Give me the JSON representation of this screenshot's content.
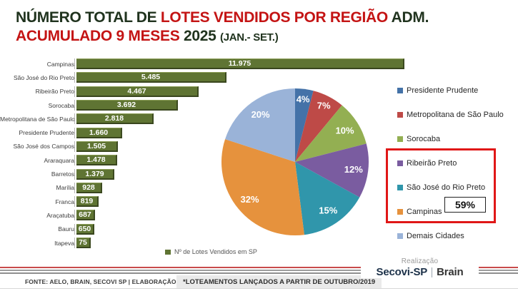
{
  "title": {
    "l1_dark1": "NÚMERO TOTAL DE ",
    "l1_red": "LOTES VENDIDOS POR REGIÃO ",
    "l1_dark2": "ADM.",
    "l2_red": "ACUMULADO 9 MESES ",
    "l2_dark": "2025 ",
    "l2_paren": "(JAN.- SET.)"
  },
  "chart_data": [
    {
      "type": "bar",
      "orientation": "horizontal",
      "title": "Nº de Lotes Vendidos em SP",
      "categories": [
        "Campinas",
        "São José do Rio Preto",
        "Ribeirão Preto",
        "Sorocaba",
        "Metropolitana de São Paulo",
        "Presidente Prudente",
        "São José dos Campos",
        "Araraquara",
        "Barretos",
        "Marília",
        "Franca",
        "Araçatuba",
        "Bauru",
        "Itapeva"
      ],
      "values": [
        11975,
        5485,
        4467,
        3692,
        2818,
        1660,
        1505,
        1478,
        1379,
        928,
        819,
        687,
        650,
        75
      ],
      "value_labels": [
        "11.975",
        "5.485",
        "4.467",
        "3.692",
        "2.818",
        "1.660",
        "1.505",
        "1.478",
        "1.379",
        "928",
        "819",
        "687",
        "650",
        "75"
      ],
      "xlim": [
        0,
        11975
      ],
      "bar_color": "#5F7433",
      "grid": false
    },
    {
      "type": "pie",
      "start_angle": "top",
      "direction": "clockwise",
      "slices": [
        {
          "label": "Presidente Prudente",
          "pct": 4,
          "color": "#4472A8",
          "text": "4%"
        },
        {
          "label": "Metropolitana de São Paulo",
          "pct": 7,
          "color": "#BE4A47",
          "text": "7%"
        },
        {
          "label": "Sorocaba",
          "pct": 10,
          "color": "#93AF52",
          "text": "10%"
        },
        {
          "label": "Ribeirão Preto",
          "pct": 12,
          "color": "#7A5CA0",
          "text": "12%"
        },
        {
          "label": "São José do Rio Preto",
          "pct": 15,
          "color": "#3096AB",
          "text": "15%"
        },
        {
          "label": "Campinas",
          "pct": 32,
          "color": "#E6923D",
          "text": "32%"
        },
        {
          "label": "Demais Cidades",
          "pct": 20,
          "color": "#9AB3D8",
          "text": "20%"
        }
      ],
      "legend_position": "right",
      "annotation": {
        "text": "59%",
        "highlighted_slices": [
          "Ribeirão Preto",
          "São José do Rio Preto",
          "Campinas"
        ]
      }
    }
  ],
  "pie_legend": {
    "items": [
      {
        "label": "Presidente Prudente",
        "color": "#4472A8"
      },
      {
        "label": "Metropolitana de São Paulo",
        "color": "#BE4A47"
      },
      {
        "label": "Sorocaba",
        "color": "#93AF52"
      },
      {
        "label": "Ribeirão Preto",
        "color": "#7A5CA0"
      },
      {
        "label": "São José do Rio Preto",
        "color": "#3096AB"
      },
      {
        "label": "Campinas",
        "color": "#E6923D"
      },
      {
        "label": "Demais Cidades",
        "color": "#9AB3D8"
      }
    ]
  },
  "bar_legend": {
    "label": "Nº de Lotes Vendidos em SP",
    "marker_color": "#5F7433"
  },
  "annotation": {
    "value": "59%"
  },
  "footer": {
    "source": "FONTE: AELO, BRAIN, SECOVI SP | ELABORAÇÃO BRAIN",
    "note": "*LOTEAMENTOS LANÇADOS A PARTIR DE OUTUBRO/2019",
    "realizacao_label": "Realização",
    "brand_left": "Secovi-SP",
    "brand_right": "Brain"
  },
  "colors": {
    "title_dark": "#20331E",
    "title_red": "#C41414",
    "bar_green": "#5F7433",
    "highlight_red": "#E01717"
  }
}
